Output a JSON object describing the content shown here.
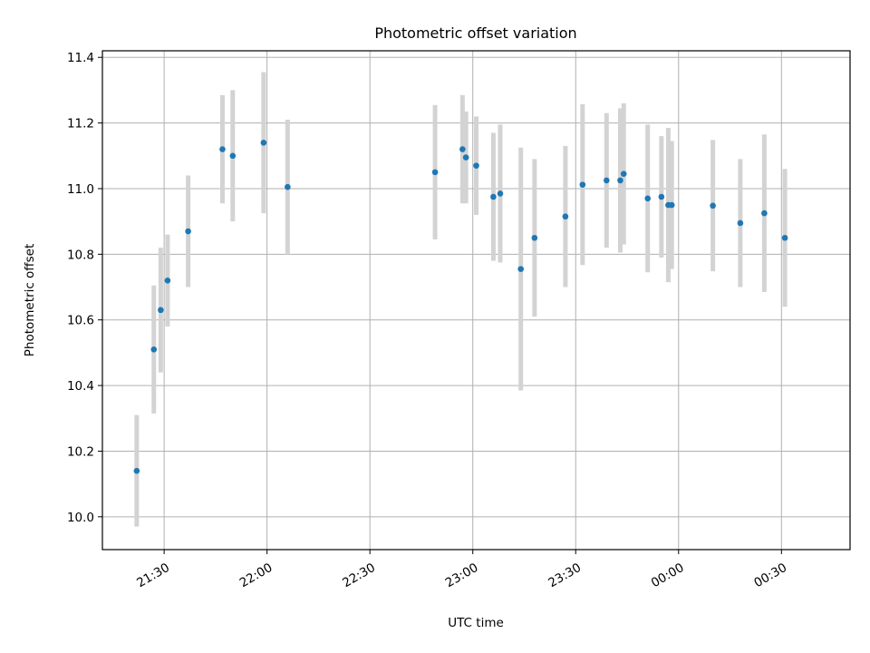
{
  "chart_data": {
    "type": "scatter",
    "title": "Photometric offset variation",
    "xlabel": "UTC time",
    "ylabel": "Photometric offset",
    "grid": true,
    "xlim": [
      "21:12",
      "00:50"
    ],
    "ylim": [
      9.9,
      11.42
    ],
    "x_ticks": [
      "21:30",
      "22:00",
      "22:30",
      "23:00",
      "23:30",
      "00:00",
      "00:30"
    ],
    "y_ticks": [
      "10.0",
      "10.2",
      "10.4",
      "10.6",
      "10.8",
      "11.0",
      "11.2",
      "11.4"
    ],
    "point_color": "#1f77b4",
    "errorbar_color": "#d3d3d3",
    "points": [
      {
        "x": "21:22",
        "y": 10.14,
        "err": 0.17
      },
      {
        "x": "21:27",
        "y": 10.51,
        "err": 0.195
      },
      {
        "x": "21:29",
        "y": 10.63,
        "err": 0.19
      },
      {
        "x": "21:31",
        "y": 10.72,
        "err": 0.14
      },
      {
        "x": "21:37",
        "y": 10.87,
        "err": 0.17
      },
      {
        "x": "21:47",
        "y": 11.12,
        "err": 0.165
      },
      {
        "x": "21:50",
        "y": 11.1,
        "err": 0.2
      },
      {
        "x": "21:59",
        "y": 11.14,
        "err": 0.215
      },
      {
        "x": "22:06",
        "y": 11.005,
        "err": 0.205
      },
      {
        "x": "22:49",
        "y": 11.05,
        "err": 0.205
      },
      {
        "x": "22:57",
        "y": 11.12,
        "err": 0.165
      },
      {
        "x": "22:58",
        "y": 11.095,
        "err": 0.14
      },
      {
        "x": "23:01",
        "y": 11.07,
        "err": 0.15
      },
      {
        "x": "23:06",
        "y": 10.975,
        "err": 0.195
      },
      {
        "x": "23:08",
        "y": 10.985,
        "err": 0.21
      },
      {
        "x": "23:14",
        "y": 10.755,
        "err": 0.37
      },
      {
        "x": "23:18",
        "y": 10.85,
        "err": 0.24
      },
      {
        "x": "23:27",
        "y": 10.915,
        "err": 0.215
      },
      {
        "x": "23:32",
        "y": 11.012,
        "err": 0.245
      },
      {
        "x": "23:39",
        "y": 11.025,
        "err": 0.205
      },
      {
        "x": "23:43",
        "y": 11.025,
        "err": 0.22
      },
      {
        "x": "23:44",
        "y": 11.045,
        "err": 0.215
      },
      {
        "x": "23:51",
        "y": 10.97,
        "err": 0.225
      },
      {
        "x": "23:55",
        "y": 10.975,
        "err": 0.185
      },
      {
        "x": "23:57",
        "y": 10.95,
        "err": 0.235
      },
      {
        "x": "23:58",
        "y": 10.95,
        "err": 0.195
      },
      {
        "x": "00:10",
        "y": 10.948,
        "err": 0.2
      },
      {
        "x": "00:18",
        "y": 10.895,
        "err": 0.195
      },
      {
        "x": "00:25",
        "y": 10.925,
        "err": 0.24
      },
      {
        "x": "00:31",
        "y": 10.85,
        "err": 0.21
      }
    ]
  }
}
